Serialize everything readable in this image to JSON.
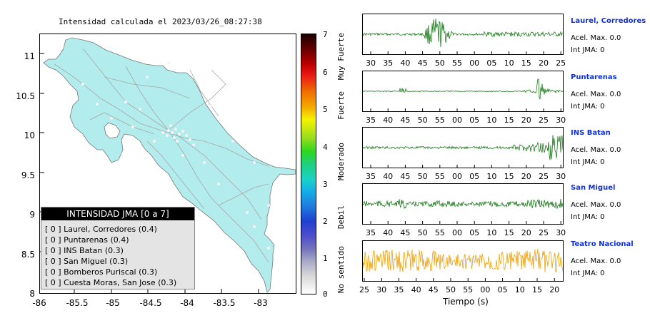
{
  "map": {
    "title": "Intensidad calculada el 2023/03/26_08:27:38",
    "yticks": [
      "11",
      "10.5",
      "10",
      "9.5",
      "9",
      "8.5",
      "8"
    ],
    "xticks": [
      "-86",
      "-85.5",
      "-85",
      "-84.5",
      "-84",
      "-83.5",
      "-83"
    ]
  },
  "legend": {
    "title": "INTENSIDAD JMA [0 a 7]",
    "items": [
      "[ 0 ]  Laurel, Corredores (0.4)",
      "[ 0 ]  Puntarenas (0.4)",
      "[ 0 ]  INS Batan (0.3)",
      "[ 0 ]  San Miguel (0.3)",
      "[ 0 ]  Bomberos Puriscal (0.3)",
      "[ 0 ]  Cuesta Moras, San Jose (0.3)"
    ]
  },
  "scale": {
    "ticks": [
      "7",
      "6",
      "5",
      "4",
      "3",
      "2",
      "1",
      "0"
    ],
    "labels": [
      "Muy Fuerte",
      "Fuerte",
      "Moderado",
      "Debil",
      "No sentido"
    ]
  },
  "stations": [
    {
      "name": "Laurel, Corredores",
      "acel": "Acel. Max. 0.0",
      "jma": "Int JMA: 0",
      "color": "#1a7a1a",
      "ticks": [
        "30",
        "35",
        "40",
        "45",
        "50",
        "55",
        "00",
        "05",
        "10",
        "15",
        "20",
        "25"
      ]
    },
    {
      "name": "Puntarenas",
      "acel": "Acel. Max. 0.0",
      "jma": "Int JMA: 0",
      "color": "#1a7a1a",
      "ticks": [
        "35",
        "40",
        "45",
        "50",
        "55",
        "00",
        "05",
        "10",
        "15",
        "20",
        "25",
        "30"
      ]
    },
    {
      "name": "INS Batan",
      "acel": "Acel. Max. 0.0",
      "jma": "Int JMA: 0",
      "color": "#1a7a1a",
      "ticks": [
        "35",
        "40",
        "45",
        "50",
        "55",
        "00",
        "05",
        "10",
        "15",
        "20",
        "25",
        "30"
      ]
    },
    {
      "name": "San Miguel",
      "acel": "Acel. Max. 0.0",
      "jma": "Int JMA: 0",
      "color": "#1a7a1a",
      "ticks": [
        "35",
        "40",
        "45",
        "50",
        "55",
        "00",
        "05",
        "10",
        "15",
        "20",
        "25",
        "30"
      ]
    },
    {
      "name": "Teatro Nacional",
      "acel": "Acel. Max. 0.0",
      "jma": "Int JMA: 0",
      "color": "#f0a000",
      "ticks": [
        "25",
        "30",
        "35",
        "40",
        "45",
        "50",
        "55",
        "00",
        "05",
        "10",
        "15",
        "20"
      ]
    }
  ],
  "time_axis_label": "Tiempo (s)",
  "colors": {
    "land": "#b2ecec",
    "roads": "#a8a8a8",
    "station_dots": "#f4f4f4"
  }
}
